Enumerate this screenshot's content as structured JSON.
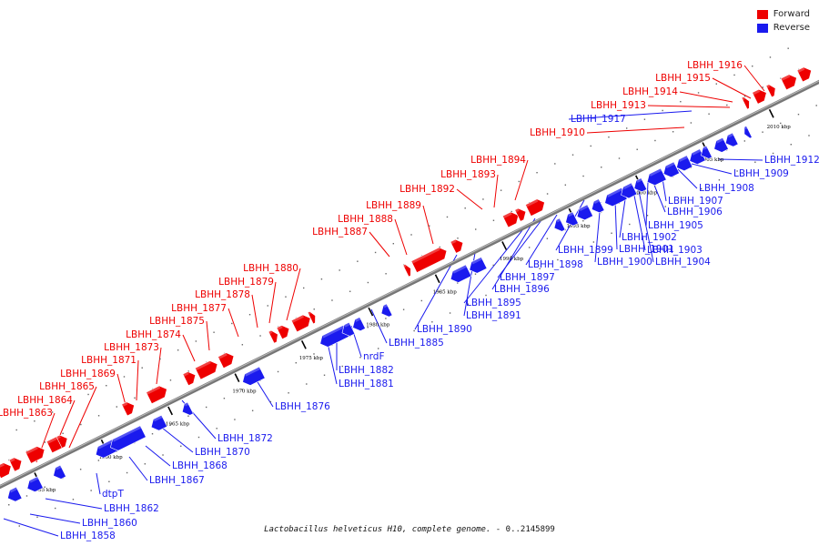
{
  "legend": {
    "forward_label": "Forward",
    "reverse_label": "Reverse",
    "forward_color": "#ee0000",
    "reverse_color": "#1a1aee"
  },
  "caption": {
    "organism": "Lactobacillus helveticus H10, complete genome.",
    "range": " - 0..2145899"
  },
  "axis": {
    "tick_unit": "kbp",
    "ticks": [
      1955,
      1960,
      1965,
      1970,
      1975,
      1980,
      1985,
      1990,
      1995,
      2000,
      2005,
      2010
    ]
  },
  "genes": {
    "forward": [
      "LBHH_1863",
      "LBHH_1864",
      "LBHH_1865",
      "LBHH_1869",
      "LBHH_1871",
      "LBHH_1873",
      "LBHH_1874",
      "LBHH_1875",
      "LBHH_1877",
      "LBHH_1878",
      "LBHH_1879",
      "LBHH_1880",
      "LBHH_1887",
      "LBHH_1888",
      "LBHH_1889",
      "LBHH_1892",
      "LBHH_1893",
      "LBHH_1894",
      "LBHH_1910",
      "LBHH_1913",
      "LBHH_1914",
      "LBHH_1915",
      "LBHH_1916"
    ],
    "reverse": [
      "LBHH_1858",
      "LBHH_1860",
      "LBHH_1862",
      "dtpT",
      "LBHH_1867",
      "LBHH_1868",
      "LBHH_1870",
      "LBHH_1872",
      "LBHH_1876",
      "LBHH_1881",
      "LBHH_1882",
      "nrdF",
      "LBHH_1885",
      "LBHH_1890",
      "LBHH_1891",
      "LBHH_1895",
      "LBHH_1896",
      "LBHH_1897",
      "LBHH_1898",
      "LBHH_1899",
      "LBHH_1900",
      "LBHH_1901",
      "LBHH_1902",
      "LBHH_1903",
      "LBHH_1904",
      "LBHH_1905",
      "LBHH_1906",
      "LBHH_1907",
      "LBHH_1908",
      "LBHH_1909",
      "LBHH_1912",
      "LBHH_1917"
    ]
  }
}
